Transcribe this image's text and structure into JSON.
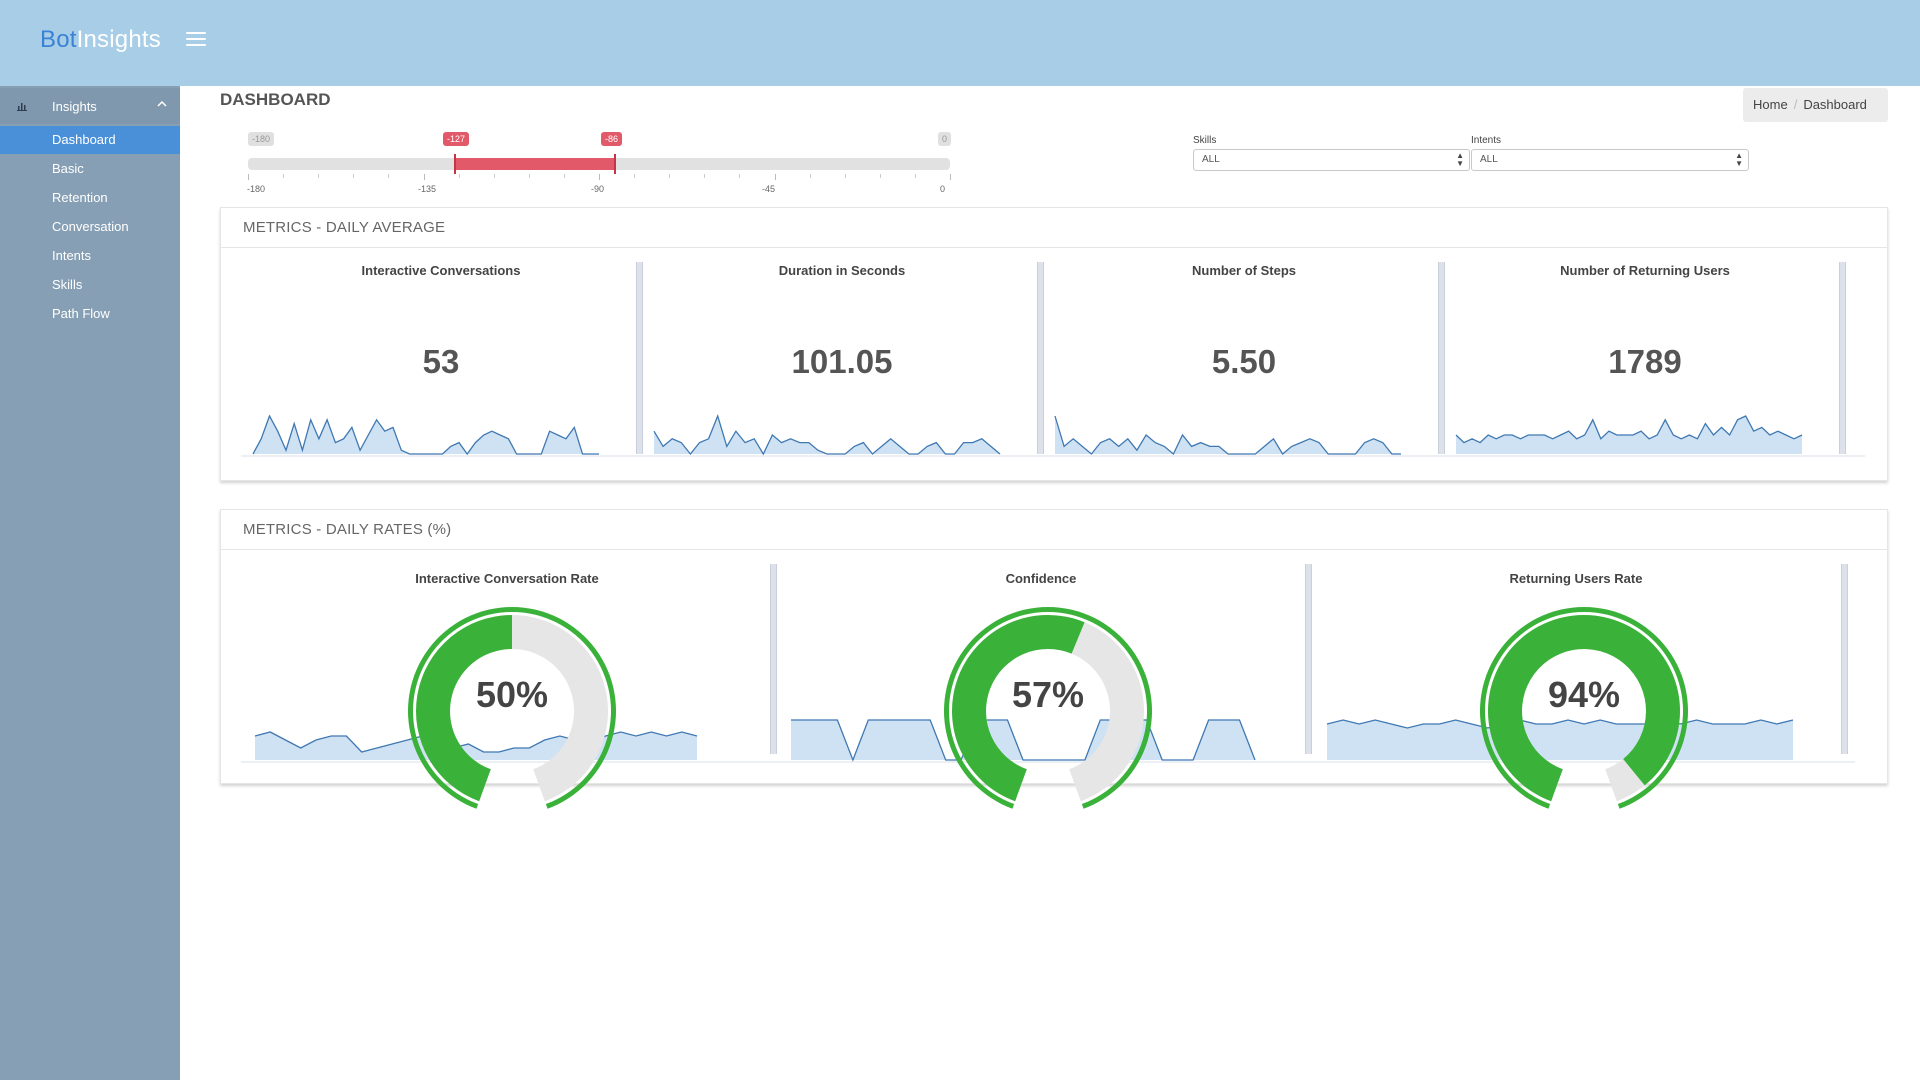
{
  "app": {
    "brand_part1": "Bot",
    "brand_part2": "Insights"
  },
  "header": {
    "menu_icon": "hamburger-icon"
  },
  "sidebar": {
    "group": {
      "label": "Insights",
      "icon": "bar-chart-icon",
      "toggle_icon": "chevron-up-icon"
    },
    "items": [
      {
        "label": "Dashboard",
        "active": true
      },
      {
        "label": "Basic",
        "active": false
      },
      {
        "label": "Retention",
        "active": false
      },
      {
        "label": "Conversation",
        "active": false
      },
      {
        "label": "Intents",
        "active": false
      },
      {
        "label": "Skills",
        "active": false
      },
      {
        "label": "Path Flow",
        "active": false
      }
    ]
  },
  "page": {
    "title": "DASHBOARD"
  },
  "breadcrumb": {
    "home": "Home",
    "separator": "/",
    "current": "Dashboard"
  },
  "range_slider": {
    "min": -180,
    "max": 0,
    "low": -127,
    "high": -86,
    "min_label": "-180",
    "max_label": "0",
    "low_label": "-127",
    "high_label": "-86",
    "scale_labels": [
      "-180",
      "-135",
      "-90",
      "-45",
      "0"
    ],
    "fill_color": "#e25a6a"
  },
  "filters": {
    "skills": {
      "label": "Skills",
      "value": "ALL"
    },
    "intents": {
      "label": "Intents",
      "value": "ALL"
    }
  },
  "daily_average": {
    "title": "METRICS - DAILY AVERAGE",
    "metrics": [
      {
        "title": "Interactive Conversations",
        "value": "53",
        "trend": [
          0,
          0.4,
          1.0,
          0.6,
          0.1,
          0.8,
          0.1,
          0.9,
          0.4,
          0.9,
          0.3,
          0.4,
          0.7,
          0.1,
          0.5,
          0.9,
          0.6,
          0.7,
          0.1,
          0,
          0,
          0,
          0,
          0,
          0.2,
          0.3,
          0,
          0.3,
          0.5,
          0.6,
          0.5,
          0.4,
          0,
          0,
          0,
          0,
          0.6,
          0.5,
          0.4,
          0.7,
          0,
          0,
          0
        ]
      },
      {
        "title": "Duration in Seconds",
        "value": "101.05",
        "trend": [
          0.6,
          0.2,
          0.4,
          0.3,
          0,
          0.3,
          0.4,
          1.0,
          0.2,
          0.6,
          0.3,
          0.4,
          0,
          0.5,
          0.3,
          0.4,
          0.3,
          0.3,
          0.1,
          0,
          0,
          0,
          0.2,
          0.3,
          0,
          0.2,
          0.4,
          0.2,
          0,
          0,
          0.2,
          0.3,
          0,
          0,
          0.3,
          0.3,
          0.4,
          0.2,
          0
        ]
      },
      {
        "title": "Number of Steps",
        "value": "5.50",
        "trend": [
          1.0,
          0.2,
          0.4,
          0.2,
          0,
          0.3,
          0.4,
          0.2,
          0.4,
          0.1,
          0.5,
          0.3,
          0.2,
          0,
          0.5,
          0.2,
          0.3,
          0.2,
          0.2,
          0,
          0,
          0,
          0,
          0.2,
          0.4,
          0,
          0.2,
          0.3,
          0.4,
          0.3,
          0,
          0,
          0,
          0,
          0.3,
          0.4,
          0.3,
          0,
          0
        ]
      },
      {
        "title": "Number of Returning Users",
        "value": "1789",
        "trend": [
          0.5,
          0.3,
          0.4,
          0.3,
          0.5,
          0.4,
          0.5,
          0.5,
          0.4,
          0.5,
          0.5,
          0.5,
          0.4,
          0.5,
          0.6,
          0.4,
          0.5,
          0.9,
          0.4,
          0.6,
          0.5,
          0.5,
          0.5,
          0.6,
          0.4,
          0.5,
          0.9,
          0.5,
          0.4,
          0.5,
          0.4,
          0.8,
          0.5,
          0.7,
          0.5,
          0.9,
          1.0,
          0.6,
          0.7,
          0.5,
          0.6,
          0.5,
          0.4,
          0.5
        ]
      }
    ],
    "spark_color": "#3f78b2",
    "spark_fill": "#cfe2f3"
  },
  "daily_rates": {
    "title": "METRICS - DAILY RATES (%)",
    "gauges": [
      {
        "title": "Interactive Conversation Rate",
        "value": "50%",
        "percent": 50,
        "trend": [
          0.6,
          0.7,
          0.5,
          0.3,
          0.5,
          0.6,
          0.6,
          0.2,
          0.3,
          0.4,
          0.5,
          0.6,
          0.4,
          0.3,
          0.4,
          0.2,
          0.2,
          0.3,
          0.3,
          0.5,
          0.6,
          0.5,
          0.4,
          0.6,
          0.7,
          0.6,
          0.7,
          0.6,
          0.7,
          0.6
        ]
      },
      {
        "title": "Confidence",
        "value": "57%",
        "percent": 57,
        "trend": [
          1.0,
          1.0,
          1.0,
          1.0,
          0,
          1.0,
          1.0,
          1.0,
          1.0,
          1.0,
          0,
          0,
          1.0,
          1.0,
          1.0,
          0,
          0,
          0,
          0,
          0,
          1.0,
          1.0,
          1.0,
          1.0,
          0,
          0,
          0,
          1.0,
          1.0,
          1.0,
          0
        ]
      },
      {
        "title": "Returning Users Rate",
        "value": "94%",
        "percent": 94,
        "trend": [
          0.9,
          1.0,
          0.9,
          1.0,
          0.9,
          0.8,
          0.9,
          0.9,
          1.0,
          0.9,
          0.8,
          0.9,
          1.0,
          0.9,
          0.9,
          1.0,
          0.9,
          1.0,
          0.9,
          0.9,
          0.9,
          1.0,
          0.9,
          1.0,
          0.9,
          0.9,
          0.9,
          1.0,
          0.9,
          1.0
        ]
      }
    ],
    "gauge_color": "#3ab23a",
    "gauge_track": "#e6e6e6"
  }
}
